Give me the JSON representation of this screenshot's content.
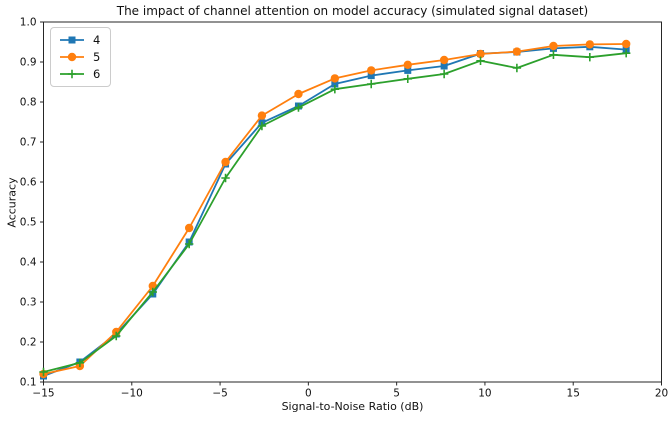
{
  "title": "The impact of channel attention on model accuracy (simulated signal dataset)",
  "axes": {
    "xlabel": "Signal-to-Noise Ratio (dB)",
    "ylabel": "Accuracy"
  },
  "chart_data": {
    "type": "line",
    "title": "The impact of channel attention on model accuracy (simulated signal dataset)",
    "xlabel": "Signal-to-Noise Ratio (dB)",
    "ylabel": "Accuracy",
    "xlim": [
      -15,
      20
    ],
    "ylim": [
      0.1,
      1.0
    ],
    "x_ticks": [
      -15,
      -10,
      -5,
      0,
      5,
      10,
      15,
      20
    ],
    "y_ticks": [
      0.1,
      0.2,
      0.3,
      0.4,
      0.5,
      0.6,
      0.7,
      0.8,
      0.9,
      1.0
    ],
    "grid": false,
    "legend_position": "upper left",
    "x": [
      -15,
      -12.94,
      -10.88,
      -8.81,
      -6.75,
      -4.69,
      -2.63,
      -0.56,
      1.5,
      3.56,
      5.63,
      7.69,
      9.75,
      11.81,
      13.88,
      15.94,
      18
    ],
    "series": [
      {
        "name": "4",
        "color": "#1f77b4",
        "marker": "square",
        "values": [
          0.115,
          0.15,
          0.22,
          0.32,
          0.45,
          0.645,
          0.748,
          0.79,
          0.845,
          0.866,
          0.879,
          0.89,
          0.921,
          0.925,
          0.934,
          0.938,
          0.931
        ]
      },
      {
        "name": "5",
        "color": "#ff7f0e",
        "marker": "circle",
        "values": [
          0.12,
          0.14,
          0.225,
          0.34,
          0.485,
          0.65,
          0.766,
          0.82,
          0.859,
          0.879,
          0.893,
          0.905,
          0.92,
          0.926,
          0.94,
          0.944,
          0.945
        ]
      },
      {
        "name": "6",
        "color": "#2ca02c",
        "marker": "plus",
        "values": [
          0.125,
          0.148,
          0.215,
          0.325,
          0.445,
          0.61,
          0.74,
          0.786,
          0.832,
          0.845,
          0.858,
          0.87,
          0.903,
          0.885,
          0.918,
          0.912,
          0.922
        ]
      }
    ]
  }
}
